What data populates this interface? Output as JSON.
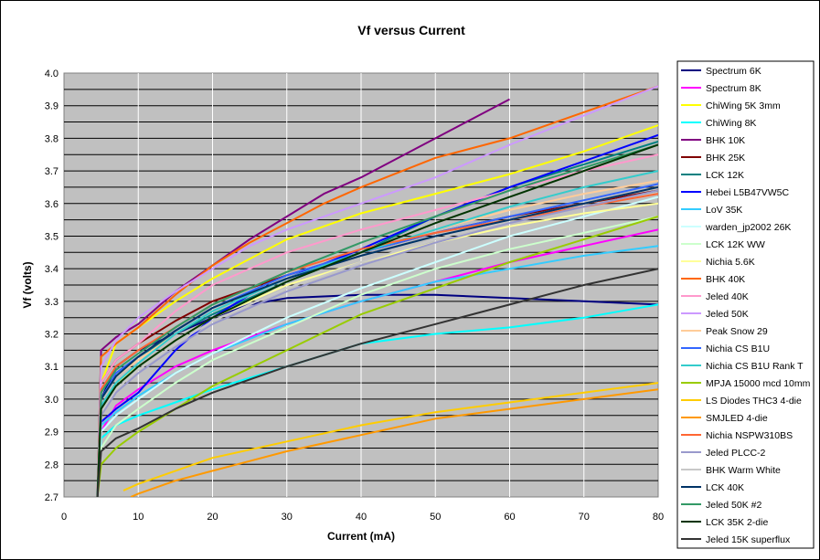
{
  "chart_data": {
    "type": "line",
    "title": "Vf versus Current",
    "xlabel": "Current (mA)",
    "ylabel": "Vf (volts)",
    "xlim": [
      0,
      80
    ],
    "ylim": [
      2.7,
      4.0
    ],
    "x_ticks": [
      "0",
      "10",
      "20",
      "30",
      "40",
      "50",
      "60",
      "70",
      "80"
    ],
    "y_ticks": [
      "2.7",
      "2.8",
      "2.9",
      "3.0",
      "3.1",
      "3.2",
      "3.3",
      "3.4",
      "3.5",
      "3.6",
      "3.7",
      "3.8",
      "3.9",
      "4.0"
    ],
    "grid": true,
    "plot_background": "#c0c0c0",
    "legend_position": "right",
    "series": [
      {
        "name": "Spectrum 6K",
        "color": "#000080",
        "x": [
          4.5,
          5,
          7,
          10,
          15,
          20,
          25,
          30,
          40,
          50,
          60,
          70,
          80
        ],
        "y": [
          2.7,
          3.0,
          3.1,
          3.15,
          3.2,
          3.25,
          3.29,
          3.31,
          3.32,
          3.32,
          3.31,
          3.3,
          3.29
        ]
      },
      {
        "name": "Spectrum 8K",
        "color": "#ff00ff",
        "x": [
          4.5,
          5,
          7,
          10,
          15,
          20,
          30,
          40,
          50,
          60,
          70,
          80
        ],
        "y": [
          2.7,
          2.9,
          2.98,
          3.03,
          3.1,
          3.15,
          3.23,
          3.3,
          3.36,
          3.42,
          3.47,
          3.52
        ]
      },
      {
        "name": "ChiWing 5K 3mm",
        "color": "#ffff00",
        "x": [
          4.5,
          5,
          7,
          10,
          15,
          20,
          25,
          30,
          40,
          50,
          60,
          70,
          80
        ],
        "y": [
          2.7,
          3.05,
          3.17,
          3.22,
          3.3,
          3.37,
          3.43,
          3.49,
          3.57,
          3.63,
          3.69,
          3.76,
          3.84
        ]
      },
      {
        "name": "ChiWing 8K",
        "color": "#00ffff",
        "x": [
          4.5,
          5,
          7,
          10,
          15,
          20,
          30,
          40,
          50,
          60,
          70,
          80
        ],
        "y": [
          2.7,
          2.88,
          2.92,
          2.95,
          2.99,
          3.03,
          3.1,
          3.17,
          3.2,
          3.22,
          3.25,
          3.29
        ]
      },
      {
        "name": "BHK 10K",
        "color": "#800080",
        "x": [
          4.5,
          5,
          7,
          10,
          15,
          20,
          25,
          30,
          35,
          40,
          50,
          60
        ],
        "y": [
          2.7,
          3.15,
          3.19,
          3.23,
          3.33,
          3.41,
          3.49,
          3.56,
          3.63,
          3.68,
          3.8,
          3.92
        ]
      },
      {
        "name": "BHK 25K",
        "color": "#800000",
        "x": [
          4.5,
          5,
          7,
          10,
          15,
          20,
          30,
          40,
          50,
          60,
          70,
          80
        ],
        "y": [
          2.7,
          3.05,
          3.12,
          3.17,
          3.24,
          3.3,
          3.38,
          3.45,
          3.51,
          3.56,
          3.6,
          3.64
        ]
      },
      {
        "name": "LCK 12K",
        "color": "#008080",
        "x": [
          4.5,
          5,
          7,
          10,
          15,
          20,
          30,
          40,
          50,
          60,
          70,
          80
        ],
        "y": [
          2.7,
          3.0,
          3.08,
          3.13,
          3.2,
          3.26,
          3.36,
          3.45,
          3.56,
          3.65,
          3.72,
          3.79
        ]
      },
      {
        "name": "Hebei L5B47VW5C",
        "color": "#0000ff",
        "x": [
          4.5,
          5,
          7,
          10,
          15,
          20,
          25,
          30,
          40,
          50,
          60,
          70,
          80
        ],
        "y": [
          2.7,
          2.93,
          2.97,
          3.02,
          3.15,
          3.25,
          3.32,
          3.37,
          3.46,
          3.56,
          3.65,
          3.73,
          3.81
        ]
      },
      {
        "name": "LoV 35K",
        "color": "#33ccff",
        "x": [
          4.5,
          5,
          7,
          10,
          15,
          20,
          30,
          40,
          50,
          60,
          70,
          80
        ],
        "y": [
          2.7,
          2.92,
          2.96,
          3.01,
          3.08,
          3.14,
          3.23,
          3.3,
          3.36,
          3.4,
          3.44,
          3.47
        ]
      },
      {
        "name": "warden_jp2002 26K",
        "color": "#ccffff",
        "x": [
          4.5,
          5,
          7,
          10,
          15,
          20,
          30,
          40,
          50,
          60,
          70,
          80
        ],
        "y": [
          2.7,
          2.9,
          2.95,
          3.0,
          3.08,
          3.14,
          3.25,
          3.34,
          3.42,
          3.5,
          3.56,
          3.62
        ]
      },
      {
        "name": "LCK 12K WW",
        "color": "#ccffcc",
        "x": [
          4.5,
          5,
          7,
          10,
          15,
          20,
          30,
          40,
          50,
          60,
          70,
          80
        ],
        "y": [
          2.7,
          2.85,
          2.92,
          2.97,
          3.05,
          3.12,
          3.22,
          3.32,
          3.4,
          3.46,
          3.51,
          3.56
        ]
      },
      {
        "name": "Nichia 5.6K",
        "color": "#ffff99",
        "x": [
          4.5,
          5,
          7,
          10,
          15,
          20,
          30,
          40,
          50,
          60,
          70,
          80
        ],
        "y": [
          2.7,
          2.98,
          3.05,
          3.1,
          3.18,
          3.25,
          3.35,
          3.42,
          3.48,
          3.53,
          3.57,
          3.6
        ]
      },
      {
        "name": "BHK 40K",
        "color": "#ff6600",
        "x": [
          4.5,
          5,
          7,
          10,
          15,
          20,
          25,
          30,
          35,
          40,
          50,
          60,
          70,
          80
        ],
        "y": [
          2.7,
          3.13,
          3.17,
          3.22,
          3.32,
          3.41,
          3.48,
          3.54,
          3.6,
          3.65,
          3.74,
          3.8,
          3.88,
          3.96
        ]
      },
      {
        "name": "Jeled 40K",
        "color": "#ff99cc",
        "x": [
          4.5,
          5,
          7,
          10,
          15,
          20,
          30,
          40,
          50,
          60,
          70,
          80
        ],
        "y": [
          2.7,
          3.05,
          3.12,
          3.17,
          3.27,
          3.35,
          3.45,
          3.52,
          3.58,
          3.64,
          3.7,
          3.75
        ]
      },
      {
        "name": "Jeled 50K",
        "color": "#cc99ff",
        "x": [
          4.5,
          5,
          7,
          10,
          15,
          20,
          25,
          30,
          40,
          50,
          60,
          70,
          80
        ],
        "y": [
          2.7,
          3.1,
          3.18,
          3.25,
          3.33,
          3.4,
          3.47,
          3.52,
          3.6,
          3.68,
          3.78,
          3.87,
          3.96
        ]
      },
      {
        "name": "Peak Snow 29",
        "color": "#ffcc99",
        "x": [
          4.5,
          5,
          7,
          10,
          15,
          20,
          30,
          40,
          50,
          60,
          70,
          80
        ],
        "y": [
          2.7,
          3.0,
          3.07,
          3.12,
          3.2,
          3.27,
          3.37,
          3.45,
          3.52,
          3.58,
          3.63,
          3.67
        ]
      },
      {
        "name": "Nichia CS B1U",
        "color": "#3366ff",
        "x": [
          4.5,
          5,
          7,
          10,
          15,
          20,
          30,
          40,
          50,
          60,
          70,
          80
        ],
        "y": [
          2.7,
          3.0,
          3.08,
          3.13,
          3.21,
          3.28,
          3.38,
          3.45,
          3.51,
          3.56,
          3.61,
          3.66
        ]
      },
      {
        "name": "Nichia CS B1U Rank T",
        "color": "#33cccc",
        "x": [
          4.5,
          5,
          7,
          10,
          15,
          20,
          30,
          40,
          50,
          60,
          70,
          80
        ],
        "y": [
          2.7,
          2.98,
          3.05,
          3.11,
          3.2,
          3.27,
          3.37,
          3.45,
          3.52,
          3.59,
          3.65,
          3.7
        ]
      },
      {
        "name": "MPJA 15000 mcd 10mm",
        "color": "#99cc00",
        "x": [
          4.5,
          5,
          7,
          10,
          15,
          20,
          30,
          40,
          50,
          60,
          70,
          80
        ],
        "y": [
          2.7,
          2.8,
          2.85,
          2.9,
          2.97,
          3.04,
          3.15,
          3.26,
          3.34,
          3.42,
          3.49,
          3.56
        ]
      },
      {
        "name": "LS Diodes THC3 4-die",
        "color": "#ffcc00",
        "x": [
          8,
          10,
          15,
          20,
          30,
          40,
          50,
          60,
          70,
          80
        ],
        "y": [
          2.72,
          2.74,
          2.78,
          2.82,
          2.87,
          2.92,
          2.96,
          2.99,
          3.02,
          3.05
        ]
      },
      {
        "name": "SMJLED 4-die",
        "color": "#ff9900",
        "x": [
          9,
          10,
          15,
          20,
          30,
          40,
          50,
          60,
          70,
          80
        ],
        "y": [
          2.7,
          2.71,
          2.75,
          2.78,
          2.84,
          2.89,
          2.94,
          2.97,
          3.0,
          3.03
        ]
      },
      {
        "name": "Nichia NSPW310BS",
        "color": "#ff6633",
        "x": [
          4.5,
          5,
          7,
          10,
          15,
          20,
          30,
          40,
          50,
          60,
          70,
          80
        ],
        "y": [
          2.7,
          3.03,
          3.1,
          3.15,
          3.22,
          3.29,
          3.39,
          3.46,
          3.51,
          3.55,
          3.59,
          3.63
        ]
      },
      {
        "name": "Jeled PLCC-2",
        "color": "#9999cc",
        "x": [
          4.5,
          5,
          7,
          10,
          15,
          20,
          30,
          40,
          50,
          60,
          70,
          80
        ],
        "y": [
          2.7,
          2.95,
          3.02,
          3.08,
          3.16,
          3.23,
          3.33,
          3.41,
          3.48,
          3.54,
          3.59,
          3.64
        ]
      },
      {
        "name": "BHK Warm White",
        "color": "#c8c8c8",
        "x": [
          4.5,
          5,
          7,
          10,
          15,
          20,
          30,
          40,
          50,
          60,
          70,
          80
        ],
        "y": [
          2.7,
          2.96,
          3.03,
          3.09,
          3.17,
          3.24,
          3.34,
          3.42,
          3.49,
          3.55,
          3.6,
          3.65
        ]
      },
      {
        "name": "LCK 40K",
        "color": "#003366",
        "x": [
          4.5,
          5,
          7,
          10,
          15,
          20,
          30,
          40,
          50,
          60,
          70,
          80
        ],
        "y": [
          2.7,
          3.0,
          3.07,
          3.13,
          3.21,
          3.28,
          3.37,
          3.44,
          3.5,
          3.55,
          3.6,
          3.65
        ]
      },
      {
        "name": "Jeled 50K #2",
        "color": "#339966",
        "x": [
          4.5,
          5,
          7,
          10,
          15,
          20,
          30,
          40,
          50,
          60,
          70,
          80
        ],
        "y": [
          2.7,
          3.02,
          3.09,
          3.14,
          3.22,
          3.29,
          3.39,
          3.48,
          3.56,
          3.64,
          3.71,
          3.78
        ]
      },
      {
        "name": "LCK 35K 2-die",
        "color": "#003300",
        "x": [
          4.5,
          5,
          7,
          10,
          15,
          20,
          30,
          40,
          50,
          60,
          70,
          80
        ],
        "y": [
          2.7,
          2.97,
          3.04,
          3.1,
          3.18,
          3.25,
          3.36,
          3.45,
          3.54,
          3.62,
          3.7,
          3.78
        ]
      },
      {
        "name": "Jeled 15K superflux",
        "color": "#333333",
        "x": [
          4.5,
          5,
          7,
          10,
          15,
          20,
          30,
          40,
          50,
          60,
          70,
          80
        ],
        "y": [
          2.7,
          2.84,
          2.88,
          2.91,
          2.97,
          3.02,
          3.1,
          3.17,
          3.23,
          3.29,
          3.35,
          3.4
        ]
      }
    ]
  }
}
